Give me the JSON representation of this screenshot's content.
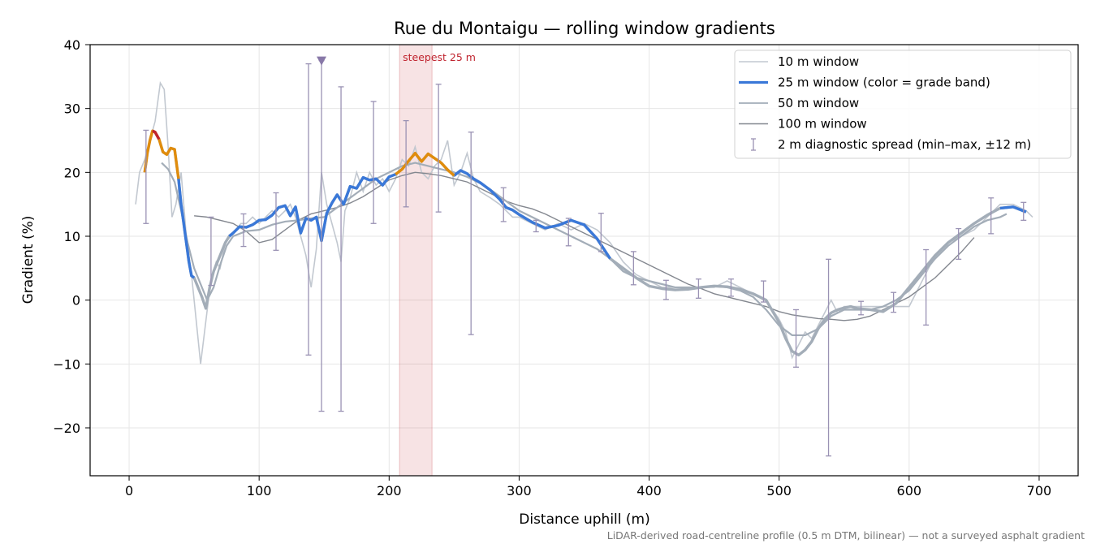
{
  "chart_data": {
    "type": "line",
    "title": "Rue du Montaigu — rolling window gradients",
    "xlabel": "Distance uphill (m)",
    "ylabel": "Gradient (%)",
    "xlim": [
      -30,
      730
    ],
    "ylim": [
      -27.5,
      40
    ],
    "xticks": [
      0,
      100,
      200,
      300,
      400,
      500,
      600,
      700
    ],
    "yticks": [
      -20,
      -10,
      0,
      10,
      20,
      30,
      40
    ],
    "grid": true,
    "legend_position": "top-right",
    "footnote": "LiDAR-derived road-centreline profile (0.5 m DTM, bilinear) — not a surveyed asphalt gradient",
    "annotation": {
      "label": "steepest 25 m",
      "x_start": 208,
      "x_end": 233,
      "color": "#c0242f"
    },
    "marker": {
      "x": 148,
      "y": 37.5,
      "color": "#8878a8"
    },
    "grade_colors": {
      "low": "#3a78d8",
      "mid": "#e08c0c",
      "high": "#c0242f"
    },
    "series": [
      {
        "name": "10 m window",
        "color": "#c2c8d0",
        "x": [
          5,
          8,
          12,
          16,
          20,
          24,
          27,
          30,
          33,
          36,
          40,
          44,
          48,
          52,
          55,
          58,
          61,
          64,
          67,
          70,
          74,
          78,
          82,
          86,
          90,
          95,
          100,
          105,
          110,
          115,
          120,
          124,
          128,
          132,
          136,
          140,
          144,
          148,
          152,
          156,
          160,
          163,
          166,
          170,
          175,
          180,
          185,
          190,
          195,
          200,
          205,
          210,
          215,
          220,
          225,
          230,
          235,
          240,
          245,
          250,
          255,
          260,
          265,
          270,
          278,
          285,
          290,
          295,
          300,
          310,
          320,
          330,
          340,
          350,
          360,
          370,
          380,
          390,
          400,
          410,
          420,
          430,
          440,
          450,
          460,
          470,
          480,
          490,
          500,
          505,
          510,
          515,
          520,
          525,
          530,
          535,
          540,
          545,
          550,
          555,
          560,
          570,
          580,
          590,
          600,
          610,
          620,
          630,
          640,
          650,
          660,
          670,
          680,
          690,
          695
        ],
        "y": [
          15,
          20,
          22,
          25,
          28,
          34,
          33,
          24,
          13,
          15,
          20,
          10,
          4,
          -4,
          -10,
          -5,
          0,
          4,
          6,
          5,
          9,
          10,
          11,
          12,
          12,
          13,
          12,
          13,
          14,
          13,
          14,
          15,
          13,
          10,
          7,
          2,
          8,
          20,
          15,
          12,
          9,
          6,
          14,
          16,
          20,
          17,
          20,
          18,
          19,
          17,
          19,
          22,
          21,
          24,
          20,
          19,
          21,
          22,
          25,
          18,
          20,
          23,
          19,
          17,
          16,
          15,
          14,
          13,
          13,
          12,
          11,
          12,
          11,
          12,
          11,
          9,
          6,
          4,
          3,
          2,
          2,
          2,
          2,
          2,
          3,
          2,
          1,
          0,
          -3,
          -5,
          -9,
          -7,
          -5,
          -6,
          -4,
          -2,
          0,
          -2,
          -1,
          -1,
          -1,
          -1,
          -1,
          -1,
          -1,
          3,
          7,
          9,
          10,
          11,
          13,
          15,
          15,
          14,
          13
        ]
      },
      {
        "name": "25 m window (color = grade band)",
        "color": "#3a78d8",
        "x": [
          12,
          14,
          16,
          18,
          20,
          23,
          26,
          29,
          32,
          35,
          38,
          40,
          43,
          46,
          48,
          50,
          53,
          56,
          59,
          62,
          65,
          68,
          71,
          74,
          77,
          80,
          85,
          90,
          95,
          100,
          105,
          110,
          115,
          120,
          124,
          128,
          132,
          136,
          140,
          144,
          148,
          152,
          156,
          160,
          165,
          170,
          175,
          180,
          185,
          190,
          195,
          200,
          205,
          210,
          215,
          220,
          225,
          230,
          235,
          240,
          245,
          250,
          255,
          260,
          265,
          270,
          278,
          285,
          290,
          295,
          300,
          310,
          320,
          330,
          340,
          350,
          360,
          370,
          380,
          390,
          400,
          410,
          420,
          430,
          440,
          450,
          460,
          470,
          480,
          490,
          500,
          505,
          510,
          515,
          520,
          525,
          530,
          535,
          540,
          545,
          550,
          555,
          560,
          570,
          580,
          590,
          600,
          610,
          620,
          630,
          640,
          650,
          660,
          670,
          680,
          690
        ],
        "y": [
          20,
          23,
          25,
          26.5,
          26.3,
          25.2,
          23.2,
          22.8,
          23.8,
          23.6,
          19,
          15,
          10.5,
          6,
          3.8,
          3.5,
          2.0,
          0.5,
          -1.3,
          2.0,
          4.5,
          6.0,
          7.5,
          9.0,
          10.0,
          10.5,
          11.5,
          11.4,
          11.8,
          12.5,
          12.6,
          13.3,
          14.5,
          14.8,
          13.2,
          14.6,
          10.5,
          12.8,
          12.5,
          13.0,
          9.3,
          13.6,
          15.2,
          16.5,
          15.0,
          17.8,
          17.5,
          19.2,
          18.8,
          19.0,
          18.0,
          19.3,
          19.7,
          20.5,
          21.8,
          23.0,
          21.7,
          22.9,
          22.2,
          21.5,
          20.4,
          19.5,
          20.3,
          19.8,
          19.0,
          18.4,
          17.2,
          15.8,
          14.5,
          14.1,
          13.4,
          12.2,
          11.3,
          11.7,
          12.5,
          11.8,
          9.6,
          6.5,
          5.0,
          3.5,
          2.2,
          1.8,
          1.6,
          1.7,
          2.0,
          2.2,
          2.1,
          1.7,
          1.0,
          0.0,
          -3.5,
          -6.0,
          -8.0,
          -8.6,
          -7.8,
          -6.5,
          -4.5,
          -3.0,
          -2.0,
          -1.5,
          -1.2,
          -1.0,
          -1.3,
          -1.5,
          -1.8,
          -0.5,
          2.0,
          4.5,
          7.0,
          9.0,
          10.5,
          12.0,
          13.3,
          14.4,
          14.6,
          13.8
        ],
        "grade_bands": [
          {
            "x_start": 12,
            "x_end": 38,
            "band": "mid"
          },
          {
            "x_start": 17,
            "x_end": 24,
            "band": "high"
          },
          {
            "x_start": 205,
            "x_end": 250,
            "band": "mid"
          }
        ],
        "blue_ranges": [
          [
            38,
            50
          ],
          [
            75,
            205
          ],
          [
            250,
            370
          ],
          [
            665,
            690
          ]
        ]
      },
      {
        "name": "50 m window",
        "color": "#a3adb8",
        "x": [
          25,
          30,
          35,
          40,
          45,
          50,
          55,
          60,
          65,
          70,
          75,
          80,
          90,
          100,
          110,
          120,
          130,
          140,
          150,
          160,
          170,
          180,
          190,
          200,
          210,
          220,
          230,
          240,
          250,
          260,
          270,
          280,
          290,
          300,
          310,
          320,
          330,
          340,
          350,
          360,
          370,
          380,
          390,
          400,
          410,
          420,
          430,
          440,
          450,
          460,
          470,
          480,
          490,
          500,
          510,
          520,
          530,
          540,
          550,
          560,
          570,
          580,
          590,
          600,
          610,
          620,
          630,
          640,
          650,
          660,
          670,
          675
        ],
        "y": [
          21.5,
          20.5,
          18.5,
          14.0,
          9.0,
          5.0,
          2.5,
          0.0,
          2.0,
          5.5,
          8.5,
          10.0,
          10.8,
          11.0,
          11.8,
          12.3,
          12.5,
          12.8,
          13.0,
          14.5,
          16.0,
          17.5,
          19.0,
          20.0,
          21.0,
          21.5,
          21.0,
          20.5,
          20.0,
          19.3,
          18.3,
          17.0,
          15.5,
          14.0,
          13.0,
          12.0,
          11.0,
          10.0,
          9.0,
          8.0,
          6.5,
          4.5,
          3.5,
          3.0,
          2.5,
          2.0,
          2.0,
          2.0,
          2.2,
          2.0,
          1.5,
          0.5,
          -1.5,
          -4.0,
          -5.5,
          -5.5,
          -4.5,
          -2.5,
          -1.5,
          -1.5,
          -1.5,
          -1.0,
          0.0,
          1.5,
          4.0,
          6.5,
          8.5,
          10.0,
          11.5,
          12.5,
          13.0,
          13.5
        ]
      },
      {
        "name": "100 m window",
        "color": "#83878f",
        "x": [
          50,
          60,
          70,
          80,
          90,
          100,
          110,
          120,
          130,
          140,
          150,
          160,
          170,
          180,
          190,
          200,
          210,
          220,
          230,
          240,
          250,
          260,
          270,
          280,
          290,
          300,
          310,
          320,
          330,
          340,
          350,
          360,
          370,
          380,
          390,
          400,
          410,
          420,
          430,
          440,
          450,
          460,
          470,
          480,
          490,
          500,
          510,
          520,
          530,
          540,
          550,
          560,
          570,
          580,
          590,
          600,
          610,
          620,
          630,
          640,
          650
        ],
        "y": [
          13.2,
          13.0,
          12.5,
          12.0,
          10.8,
          9.0,
          9.5,
          11.0,
          12.5,
          13.5,
          14.0,
          14.5,
          15.2,
          16.2,
          17.5,
          18.8,
          19.5,
          20.0,
          19.8,
          19.5,
          19.0,
          18.5,
          17.5,
          16.5,
          15.5,
          14.8,
          14.3,
          13.5,
          12.5,
          11.5,
          10.5,
          9.5,
          8.5,
          7.5,
          6.5,
          5.5,
          4.5,
          3.5,
          2.5,
          1.8,
          1.0,
          0.5,
          0.0,
          -0.5,
          -1.0,
          -1.8,
          -2.3,
          -2.6,
          -2.9,
          -3.0,
          -3.2,
          -3.0,
          -2.5,
          -1.5,
          -0.5,
          0.5,
          2.0,
          3.5,
          5.5,
          7.5,
          9.8
        ]
      }
    ],
    "error_bars": {
      "name": "2 m diagnostic spread (min–max, ±12 m)",
      "color": "#9a92b4",
      "x": [
        13,
        63,
        88,
        113,
        138,
        148,
        163,
        188,
        213,
        238,
        263,
        288,
        313,
        338,
        363,
        388,
        413,
        438,
        463,
        488,
        513,
        538,
        563,
        588,
        613,
        638,
        663,
        688
      ],
      "y": [
        18.5,
        7.5,
        10.5,
        12.5,
        14.0,
        9.5,
        9.0,
        17.5,
        21.5,
        21.0,
        18.5,
        14.0,
        11.5,
        10.5,
        10.0,
        4.0,
        1.5,
        1.5,
        2.0,
        1.0,
        -6.5,
        -4.0,
        -1.5,
        -1.0,
        2.0,
        9.0,
        13.0,
        13.8
      ],
      "ymin": [
        12.0,
        2.3,
        8.4,
        7.8,
        -8.6,
        -17.4,
        -17.4,
        12.0,
        14.6,
        13.8,
        -5.4,
        12.3,
        10.7,
        8.5,
        7.6,
        2.4,
        0.1,
        0.3,
        0.6,
        -0.3,
        -10.5,
        -24.4,
        -2.3,
        -1.9,
        -3.9,
        6.4,
        10.4,
        12.5
      ],
      "ymax": [
        26.6,
        13.0,
        13.5,
        16.8,
        37.0,
        37.5,
        33.4,
        31.1,
        28.1,
        33.8,
        26.3,
        17.6,
        12.5,
        12.8,
        13.6,
        7.6,
        3.1,
        3.3,
        3.3,
        3.0,
        -1.5,
        6.4,
        -0.2,
        1.2,
        7.9,
        11.2,
        16.0,
        15.3
      ]
    }
  }
}
